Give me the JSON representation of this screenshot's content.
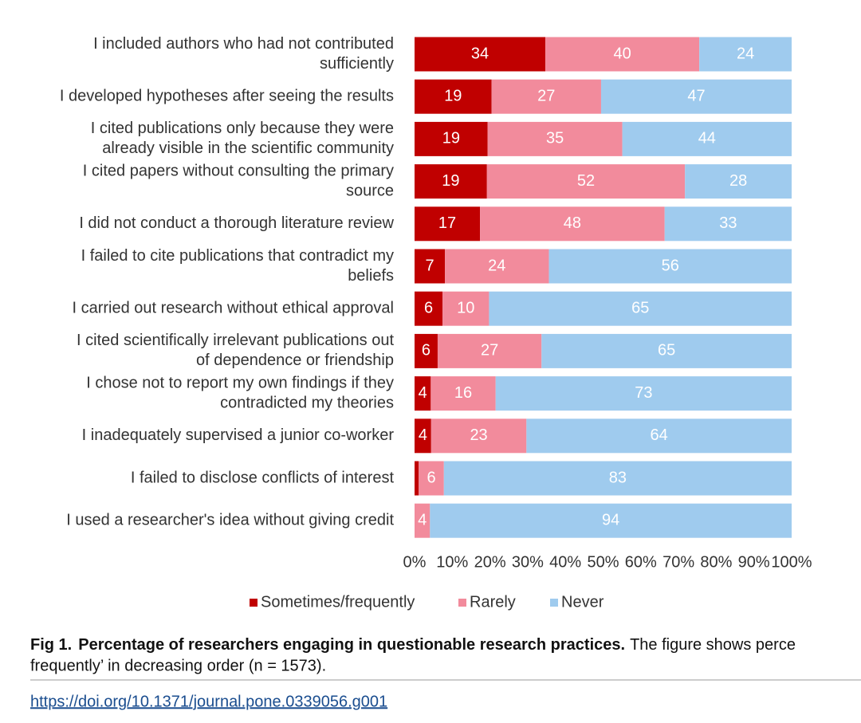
{
  "chart_data": {
    "type": "bar",
    "orientation": "horizontal",
    "stacking": "percent",
    "categories": [
      [
        "I included authors who had not contributed",
        "sufficiently"
      ],
      [
        "I developed hypotheses after seeing the results"
      ],
      [
        "I cited publications only because they were",
        "already visible in the scientific community"
      ],
      [
        "I cited papers without consulting the primary",
        "source"
      ],
      [
        "I did not conduct a thorough literature review"
      ],
      [
        "I failed to cite publications that contradict my",
        "beliefs"
      ],
      [
        "I carried out research without ethical approval"
      ],
      [
        "I cited scientifically irrelevant publications out",
        "of dependence or friendship"
      ],
      [
        "I chose not to report my own findings if they",
        "contradicted my theories"
      ],
      [
        "I inadequately supervised a junior co-worker"
      ],
      [
        "I failed to disclose conflicts of interest"
      ],
      [
        "I used a researcher's idea without giving credit"
      ]
    ],
    "series": [
      {
        "name": "Sometimes/frequently",
        "color": "#c00000",
        "values": [
          34,
          19,
          19,
          19,
          17,
          7,
          6,
          6,
          4,
          4,
          1,
          0
        ]
      },
      {
        "name": "Rarely",
        "color": "#f28b9c",
        "values": [
          40,
          27,
          35,
          52,
          48,
          24,
          10,
          27,
          16,
          23,
          6,
          4
        ]
      },
      {
        "name": "Never",
        "color": "#9fcbee",
        "values": [
          24,
          47,
          44,
          28,
          33,
          56,
          65,
          65,
          73,
          64,
          83,
          94
        ]
      }
    ],
    "xlim": [
      0,
      100
    ],
    "xticks": [
      {
        "value": 0,
        "label": "0%"
      },
      {
        "value": 10,
        "label": "10%"
      },
      {
        "value": 20,
        "label": "20%"
      },
      {
        "value": 30,
        "label": "30%"
      },
      {
        "value": 40,
        "label": "40%"
      },
      {
        "value": 50,
        "label": "50%"
      },
      {
        "value": 60,
        "label": "60%"
      },
      {
        "value": 70,
        "label": "70%"
      },
      {
        "value": 80,
        "label": "80%"
      },
      {
        "value": 90,
        "label": "90%"
      },
      {
        "value": 100,
        "label": "100%"
      }
    ],
    "legend": "bottom"
  },
  "caption": {
    "label": "Fig 1.",
    "title": "Percentage of researchers engaging in questionable research practices.",
    "text": "The figure shows perce",
    "line2": "frequently’ in decreasing order (n = 1573)."
  },
  "link": "https://doi.org/10.1371/journal.pone.0339056.g001"
}
